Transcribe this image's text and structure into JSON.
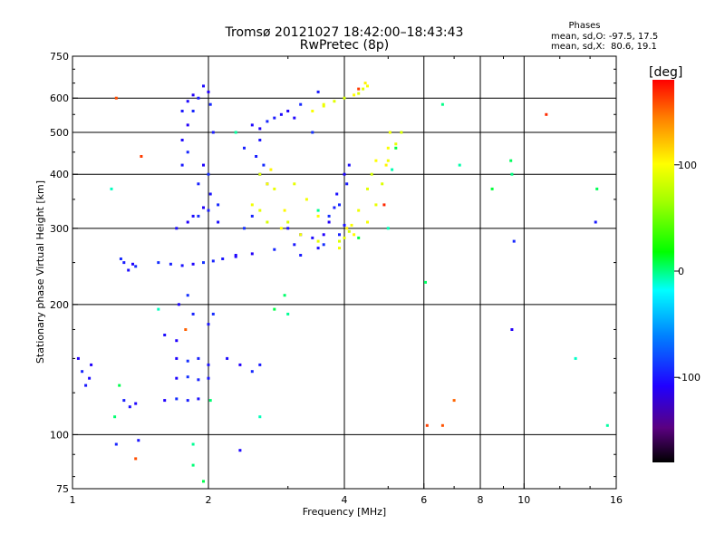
{
  "chart_data": {
    "type": "scatter",
    "title": "Tromsø 20121027 18:42:00–18:43:43",
    "subtitle": "RwPretec (8p)",
    "xlabel": "Frequency [MHz]",
    "ylabel": "Stationary phase Virtual Height [km]",
    "x_scale": "log",
    "y_scale": "log",
    "xlim": [
      1,
      16
    ],
    "ylim": [
      75,
      750
    ],
    "x_ticks": [
      1,
      2,
      4,
      6,
      8,
      10,
      16
    ],
    "x_tick_labels": [
      "1",
      "2",
      "4",
      "6",
      "8",
      "10",
      "16"
    ],
    "y_ticks": [
      75,
      100,
      200,
      300,
      400,
      500,
      600,
      750
    ],
    "y_tick_labels": [
      "75",
      "100",
      "200",
      "300",
      "400",
      "500",
      "600",
      "750"
    ],
    "x_grid": [
      2,
      4,
      6,
      8,
      10
    ],
    "y_grid": [
      100,
      200,
      300,
      400,
      500,
      600
    ],
    "stats": {
      "heading": "Phases",
      "line_o": "mean, sd,O: -97.5, 17.5",
      "line_x": "mean, sd,X:  80.6, 19.1"
    },
    "colorbar": {
      "label": "[deg]",
      "range": [
        -180,
        180
      ],
      "ticks": [
        100,
        0,
        -100
      ],
      "tick_labels": [
        "100",
        "0",
        "-100"
      ]
    },
    "colors": {
      "grid": "#000000",
      "axis": "#000000",
      "background": "#ffffff"
    },
    "series": [
      {
        "mode": "O",
        "phase": -100,
        "points": [
          [
            1.03,
            150
          ],
          [
            1.05,
            140
          ],
          [
            1.07,
            130
          ],
          [
            1.09,
            135
          ],
          [
            1.1,
            145
          ],
          [
            1.28,
            255
          ],
          [
            1.3,
            250
          ],
          [
            1.33,
            240
          ],
          [
            1.36,
            248
          ],
          [
            1.38,
            245
          ],
          [
            1.3,
            120
          ],
          [
            1.34,
            116
          ],
          [
            1.38,
            118
          ],
          [
            1.55,
            250
          ],
          [
            1.65,
            248
          ],
          [
            1.75,
            246
          ],
          [
            1.85,
            248
          ],
          [
            1.95,
            250
          ],
          [
            2.05,
            252
          ],
          [
            2.15,
            255
          ],
          [
            2.3,
            258
          ],
          [
            2.5,
            262
          ],
          [
            2.8,
            268
          ],
          [
            3.1,
            275
          ],
          [
            3.4,
            285
          ],
          [
            3.7,
            310
          ],
          [
            3.9,
            340
          ],
          [
            4.05,
            380
          ],
          [
            4.1,
            420
          ],
          [
            1.6,
            120
          ],
          [
            1.7,
            121
          ],
          [
            1.8,
            120
          ],
          [
            1.9,
            121
          ],
          [
            1.7,
            150
          ],
          [
            1.8,
            148
          ],
          [
            1.9,
            150
          ],
          [
            2.0,
            145
          ],
          [
            1.7,
            135
          ],
          [
            1.8,
            136
          ],
          [
            1.9,
            134
          ],
          [
            2.0,
            135
          ],
          [
            1.75,
            480
          ],
          [
            1.8,
            520
          ],
          [
            1.85,
            560
          ],
          [
            1.9,
            600
          ],
          [
            1.95,
            640
          ],
          [
            2.0,
            620
          ],
          [
            2.02,
            580
          ],
          [
            2.05,
            500
          ],
          [
            1.7,
            300
          ],
          [
            1.8,
            310
          ],
          [
            1.9,
            320
          ],
          [
            2.0,
            330
          ],
          [
            2.1,
            310
          ],
          [
            1.95,
            420
          ],
          [
            2.0,
            400
          ],
          [
            1.9,
            380
          ],
          [
            2.02,
            360
          ],
          [
            1.72,
            200
          ],
          [
            1.8,
            210
          ],
          [
            1.85,
            190
          ],
          [
            2.0,
            180
          ],
          [
            2.5,
            520
          ],
          [
            2.6,
            510
          ],
          [
            2.7,
            530
          ],
          [
            2.8,
            540
          ],
          [
            2.9,
            550
          ],
          [
            3.0,
            560
          ],
          [
            3.2,
            580
          ],
          [
            3.5,
            620
          ],
          [
            2.6,
            400
          ],
          [
            2.7,
            380
          ],
          [
            2.65,
            420
          ],
          [
            2.55,
            440
          ],
          [
            3.0,
            300
          ],
          [
            3.2,
            290
          ],
          [
            3.6,
            275
          ],
          [
            3.9,
            290
          ],
          [
            4.0,
            305
          ],
          [
            2.3,
            260
          ],
          [
            2.4,
            300
          ],
          [
            2.5,
            320
          ],
          [
            1.75,
            560
          ],
          [
            1.8,
            590
          ],
          [
            1.85,
            610
          ],
          [
            1.8,
            450
          ],
          [
            1.75,
            420
          ],
          [
            2.2,
            150
          ],
          [
            2.35,
            145
          ],
          [
            2.5,
            140
          ],
          [
            2.6,
            145
          ],
          [
            1.6,
            170
          ],
          [
            1.7,
            165
          ],
          [
            2.05,
            190
          ],
          [
            3.8,
            335
          ],
          [
            3.85,
            360
          ],
          [
            4.0,
            400
          ],
          [
            3.7,
            320
          ],
          [
            2.4,
            460
          ],
          [
            2.6,
            480
          ],
          [
            3.1,
            540
          ],
          [
            3.4,
            500
          ],
          [
            1.25,
            95
          ],
          [
            1.4,
            97
          ],
          [
            2.35,
            92
          ],
          [
            9.4,
            175
          ],
          [
            9.5,
            280
          ],
          [
            14.4,
            310
          ],
          [
            1.85,
            320
          ],
          [
            1.95,
            335
          ],
          [
            2.1,
            340
          ],
          [
            3.2,
            260
          ],
          [
            3.5,
            270
          ],
          [
            3.6,
            290
          ]
        ]
      },
      {
        "mode": "X",
        "phase": 95,
        "points": [
          [
            2.5,
            340
          ],
          [
            2.6,
            330
          ],
          [
            2.7,
            310
          ],
          [
            2.9,
            300
          ],
          [
            3.2,
            290
          ],
          [
            3.5,
            280
          ],
          [
            3.9,
            280
          ],
          [
            4.2,
            290
          ],
          [
            4.5,
            310
          ],
          [
            4.7,
            340
          ],
          [
            4.85,
            380
          ],
          [
            4.95,
            420
          ],
          [
            5.0,
            460
          ],
          [
            5.05,
            500
          ],
          [
            4.4,
            630
          ],
          [
            4.45,
            650
          ],
          [
            4.5,
            640
          ],
          [
            3.6,
            580
          ],
          [
            3.8,
            590
          ],
          [
            4.0,
            600
          ],
          [
            4.2,
            610
          ],
          [
            5.0,
            430
          ],
          [
            5.2,
            470
          ],
          [
            5.35,
            500
          ],
          [
            3.5,
            320
          ],
          [
            3.3,
            350
          ],
          [
            3.1,
            380
          ],
          [
            3.0,
            310
          ],
          [
            2.95,
            330
          ],
          [
            2.7,
            380
          ],
          [
            2.8,
            370
          ],
          [
            2.6,
            400
          ],
          [
            2.75,
            410
          ],
          [
            3.4,
            560
          ],
          [
            3.6,
            575
          ],
          [
            4.3,
            615
          ],
          [
            4.05,
            300
          ],
          [
            4.15,
            305
          ],
          [
            4.3,
            330
          ],
          [
            4.5,
            370
          ],
          [
            4.6,
            400
          ],
          [
            4.7,
            430
          ],
          [
            3.9,
            270
          ],
          [
            4.0,
            285
          ],
          [
            4.1,
            295
          ]
        ]
      },
      {
        "mode": "scattered",
        "phase": 0,
        "points": [
          [
            1.22,
            370
          ],
          [
            1.27,
            130
          ],
          [
            2.02,
            120
          ],
          [
            1.85,
            95
          ],
          [
            2.6,
            110
          ],
          [
            2.8,
            195
          ],
          [
            2.95,
            210
          ],
          [
            3.5,
            330
          ],
          [
            5.1,
            410
          ],
          [
            5.2,
            460
          ],
          [
            6.05,
            225
          ],
          [
            6.6,
            580
          ],
          [
            7.2,
            420
          ],
          [
            8.5,
            370
          ],
          [
            9.35,
            430
          ],
          [
            9.4,
            400
          ],
          [
            15.3,
            105
          ],
          [
            13.0,
            150
          ],
          [
            14.5,
            370
          ],
          [
            1.85,
            85
          ],
          [
            2.3,
            500
          ],
          [
            1.55,
            195
          ],
          [
            1.95,
            78
          ],
          [
            1.24,
            110
          ],
          [
            3.0,
            190
          ],
          [
            5.0,
            300
          ],
          [
            4.3,
            285
          ]
        ]
      },
      {
        "mode": "noise",
        "phase": 160,
        "points": [
          [
            6.1,
            105
          ],
          [
            6.6,
            105
          ],
          [
            7.0,
            120
          ],
          [
            11.2,
            550
          ],
          [
            1.42,
            440
          ],
          [
            1.38,
            88
          ],
          [
            1.78,
            175
          ],
          [
            4.9,
            340
          ],
          [
            4.3,
            630
          ],
          [
            1.25,
            600
          ]
        ]
      }
    ]
  }
}
